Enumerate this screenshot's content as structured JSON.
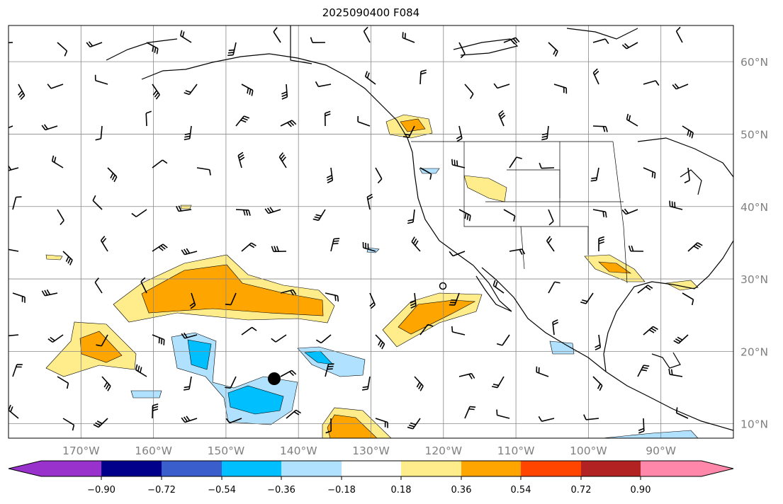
{
  "title": "2025090400 F084",
  "lon_labels": [
    "170°W",
    "160°W",
    "150°W",
    "140°W",
    "130°W",
    "120°W",
    "110°W",
    "100°W",
    "90°W"
  ],
  "lat_labels": [
    "60°N",
    "50°N",
    "40°N",
    "30°N",
    "20°N",
    "10°N"
  ],
  "colorbar": {
    "labels": [
      "−0.90",
      "−0.72",
      "−0.54",
      "−0.36",
      "−0.18",
      "0.18",
      "0.36",
      "0.54",
      "0.72",
      "0.90"
    ],
    "colors": [
      "#9932cc",
      "#00008b",
      "#3a5fcd",
      "#00bfff",
      "#b0e2ff",
      "#ffffff",
      "#ffec8b",
      "#ffa500",
      "#ff4500",
      "#b22222",
      "#ff88aa"
    ]
  },
  "fill_colors": {
    "light_yellow": "#ffec8b",
    "orange": "#ffa500",
    "light_blue": "#b0e2ff",
    "cyan": "#00bfff"
  }
}
